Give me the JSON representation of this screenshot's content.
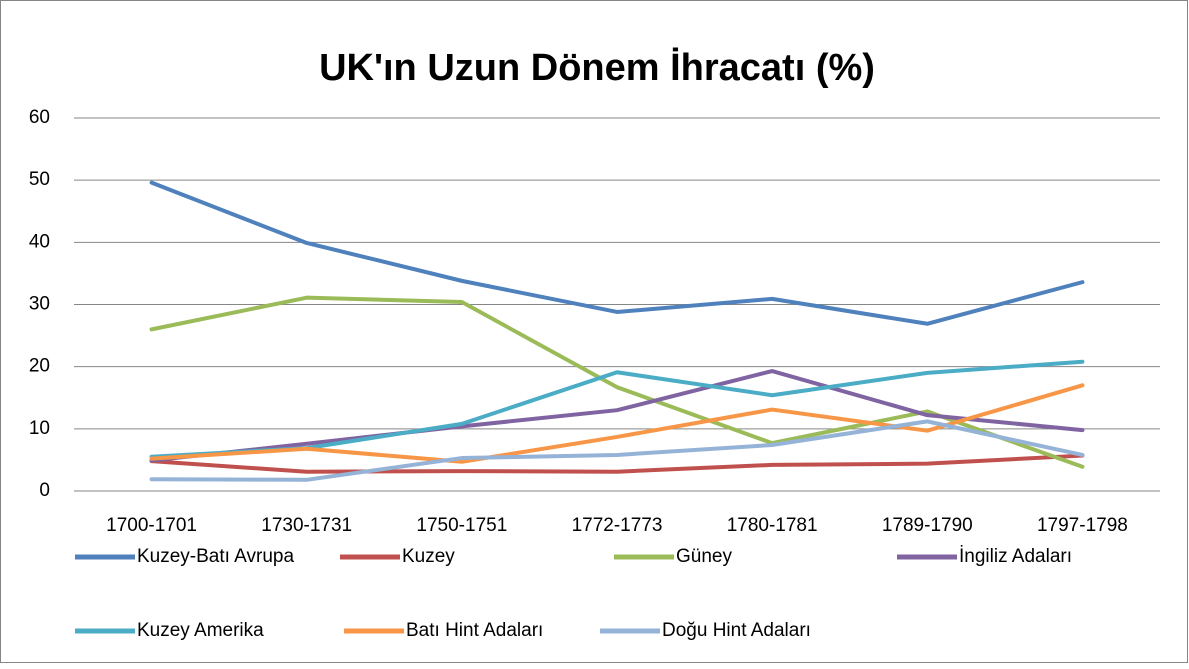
{
  "chart_data": {
    "type": "line",
    "title": "UK'ın Uzun Dönem İhracatı (%)",
    "categories": [
      "1700-1701",
      "1730-1731",
      "1750-1751",
      "1772-1773",
      "1780-1781",
      "1789-1790",
      "1797-1798"
    ],
    "series": [
      {
        "name": "Kuzey-Batı Avrupa",
        "color": "#4f81bd",
        "values": [
          49.6,
          39.9,
          33.8,
          28.8,
          30.9,
          26.9,
          33.6
        ]
      },
      {
        "name": "Kuzey",
        "color": "#c0504d",
        "values": [
          4.8,
          3.1,
          3.2,
          3.1,
          4.2,
          4.4,
          5.7
        ]
      },
      {
        "name": "Güney",
        "color": "#9bbb59",
        "values": [
          26,
          31.1,
          30.4,
          16.7,
          7.7,
          12.8,
          3.9
        ]
      },
      {
        "name": "İngiliz Adaları",
        "color": "#8064a2",
        "values": [
          4.9,
          7.6,
          10.4,
          13,
          19.3,
          12.2,
          9.8
        ]
      },
      {
        "name": "Kuzey Amerika",
        "color": "#4bacc6",
        "values": [
          5.5,
          6.9,
          10.8,
          19.1,
          15.4,
          19,
          20.8
        ]
      },
      {
        "name": "Batı Hint Adaları",
        "color": "#f79646",
        "values": [
          5.2,
          6.8,
          4.7,
          8.7,
          13.1,
          9.7,
          17
        ]
      },
      {
        "name": "Doğu Hint Adaları",
        "color": "#95b3d7",
        "values": [
          1.9,
          1.8,
          5.3,
          5.8,
          7.4,
          11.2,
          5.8
        ]
      }
    ],
    "ylim": [
      0,
      60
    ],
    "yticks": [
      0,
      10,
      20,
      30,
      40,
      50,
      60
    ],
    "grid": true,
    "legend": "bottom"
  }
}
